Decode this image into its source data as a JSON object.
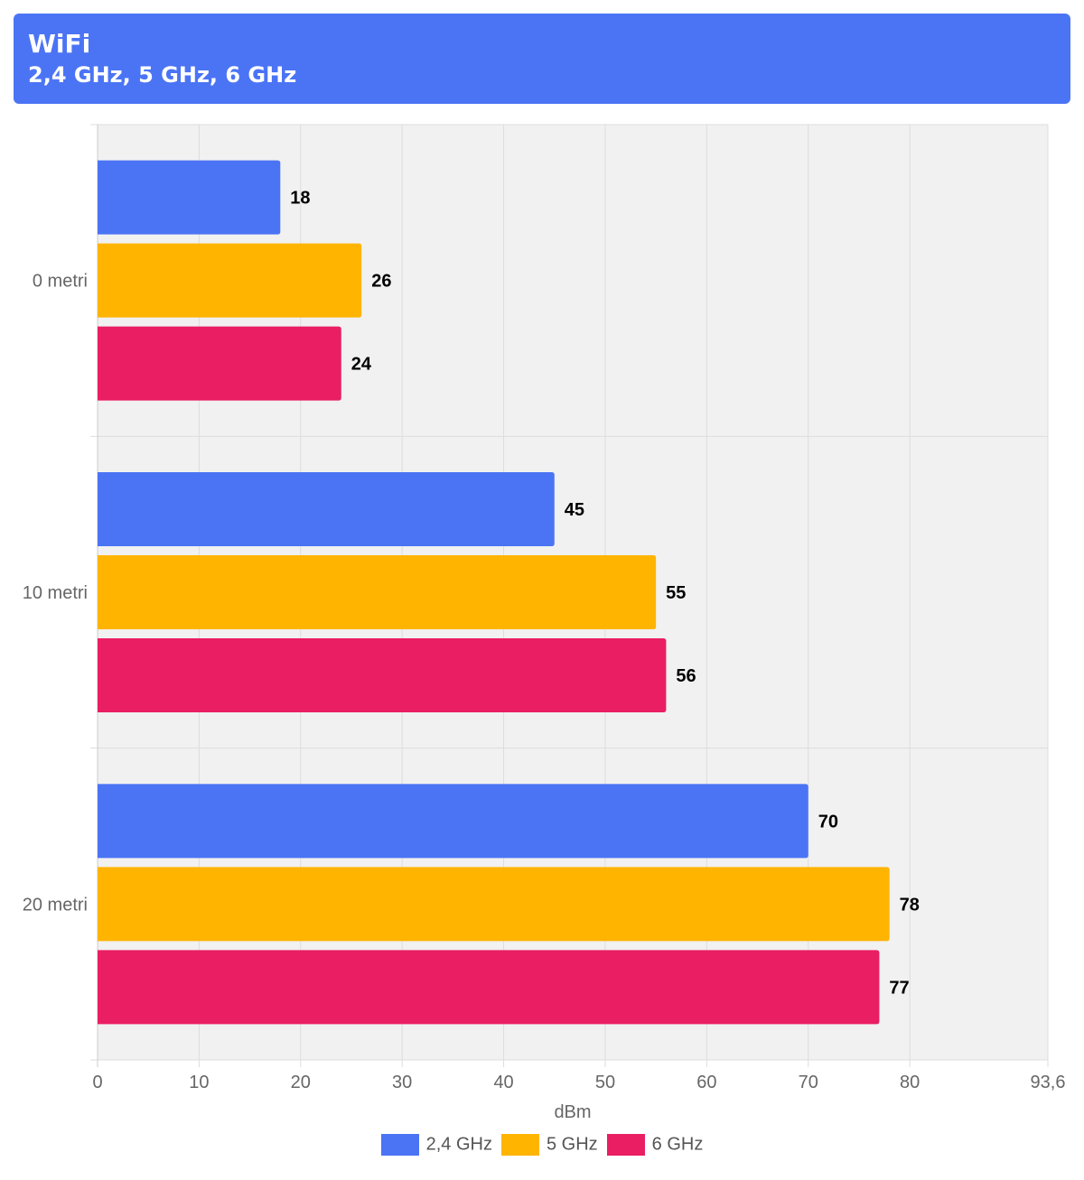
{
  "header": {
    "title": "WiFi",
    "subtitle": "2,4 GHz, 5 GHz, 6 GHz"
  },
  "colors": {
    "header_bg": "#4b74f5",
    "series": [
      "#4b74f5",
      "#ffb400",
      "#e91e63"
    ]
  },
  "chart_data": {
    "type": "bar",
    "orientation": "horizontal",
    "title": "WiFi",
    "subtitle": "2,4 GHz, 5 GHz, 6 GHz",
    "categories": [
      "0 metri",
      "10 metri",
      "20 metri"
    ],
    "series": [
      {
        "name": "2,4 GHz",
        "values": [
          18,
          45,
          70
        ]
      },
      {
        "name": "5 GHz",
        "values": [
          26,
          55,
          78
        ]
      },
      {
        "name": "6 GHz",
        "values": [
          24,
          56,
          77
        ]
      }
    ],
    "xlabel": "dBm",
    "ylabel": "",
    "xlim": [
      0,
      93.6
    ],
    "xticks": [
      "0",
      "10",
      "20",
      "30",
      "40",
      "50",
      "60",
      "70",
      "80",
      "93,6"
    ],
    "grid": true,
    "data_labels": true,
    "legend_position": "bottom"
  }
}
